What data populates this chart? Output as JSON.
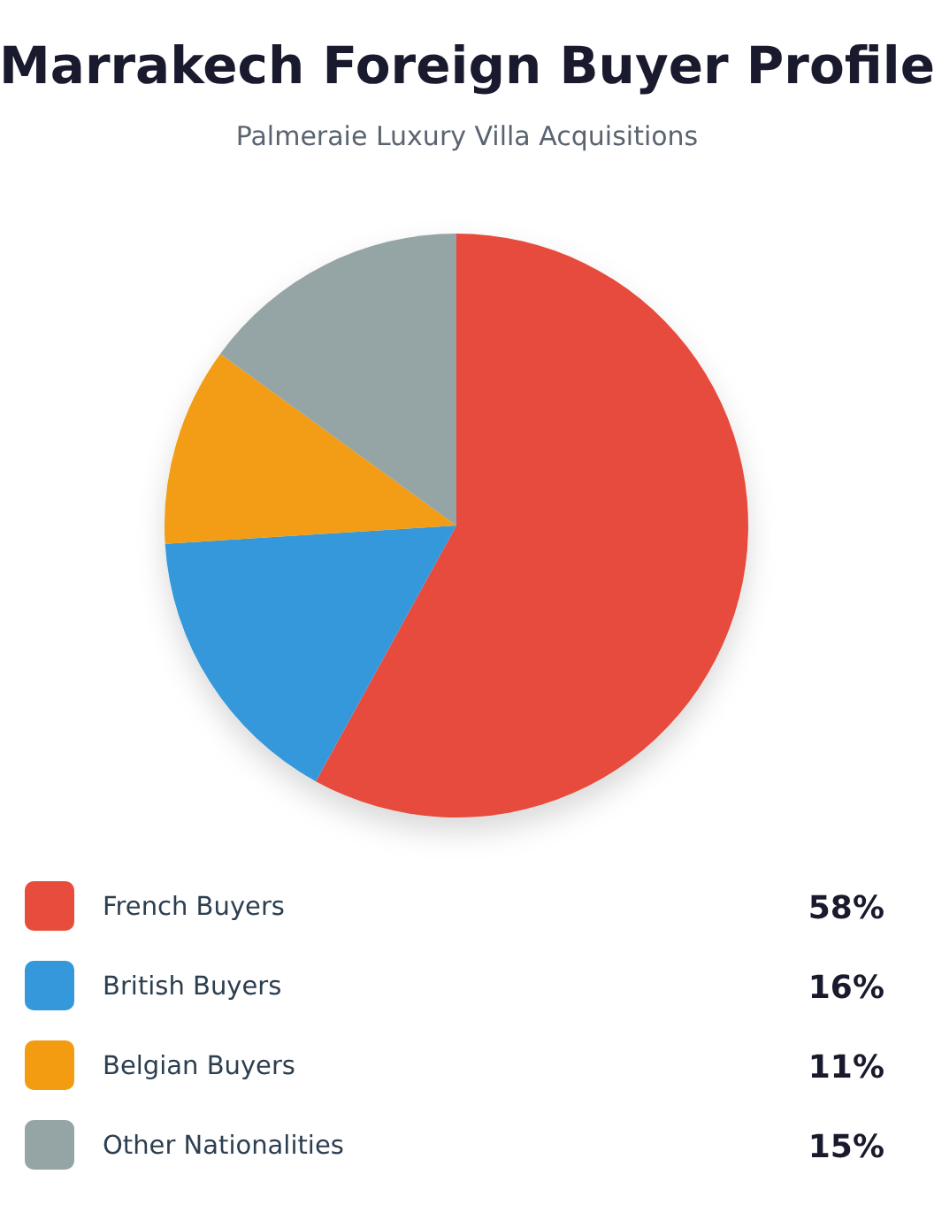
{
  "chart_data": {
    "type": "pie",
    "title": "Marrakech Foreign Buyer Profile",
    "subtitle": "Palmeraie Luxury Villa Acquisitions",
    "categories": [
      "French Buyers",
      "British Buyers",
      "Belgian Buyers",
      "Other Nationalities"
    ],
    "values": [
      58,
      16,
      11,
      15
    ],
    "colors": [
      "#e74c3c",
      "#3498db",
      "#f39c12",
      "#95a5a6"
    ],
    "value_labels": [
      "58%",
      "16%",
      "11%",
      "15%"
    ],
    "legend": "bottom"
  }
}
